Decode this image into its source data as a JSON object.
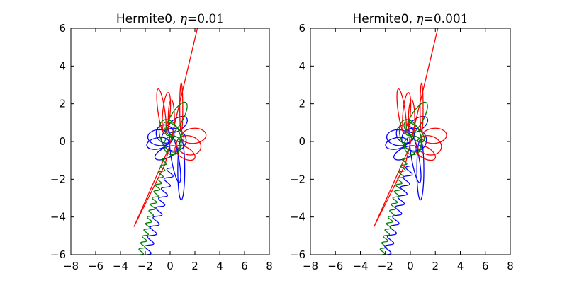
{
  "figure": {
    "background": "#ffffff"
  },
  "chart_data": [
    {
      "type": "line",
      "title": {
        "prefix": "Hermite0, ",
        "symbol": "η",
        "operator": "=",
        "value": "0.01"
      },
      "xlabel": "",
      "ylabel": "",
      "xlim": [
        -8,
        8
      ],
      "ylim": [
        -6,
        6
      ],
      "xticks": [
        -8,
        -6,
        -4,
        -2,
        0,
        2,
        4,
        6,
        8
      ],
      "yticks": [
        -6,
        -4,
        -2,
        0,
        2,
        4,
        6
      ],
      "xtick_labels": [
        "−8",
        "−6",
        "−4",
        "−2",
        "0",
        "2",
        "4",
        "6",
        "8"
      ],
      "ytick_labels": [
        "−6",
        "−4",
        "−2",
        "0",
        "2",
        "4",
        "6"
      ],
      "grid": false,
      "series": [
        {
          "color": "#0000ff",
          "escape": {
            "start": [
              0.1,
              -1.4
            ],
            "end": [
              -1.9,
              -6.0
            ],
            "wiggles": 9,
            "amp": 0.32
          },
          "loops": [
            {
              "cx": -0.8,
              "cy": 0.2,
              "rx": 1.0,
              "ry": 0.42,
              "rot": -5
            },
            {
              "cx": -1.0,
              "cy": -0.1,
              "rx": 0.9,
              "ry": 0.3,
              "rot": 12
            },
            {
              "cx": -0.3,
              "cy": -0.6,
              "rx": 1.0,
              "ry": 0.28,
              "rot": 25
            },
            {
              "cx": 0.4,
              "cy": -0.9,
              "rx": 0.3,
              "ry": 1.3,
              "rot": 10
            },
            {
              "cx": 0.9,
              "cy": -1.5,
              "rx": 0.28,
              "ry": 1.6,
              "rot": 0
            },
            {
              "cx": 0.6,
              "cy": 0.9,
              "rx": 0.9,
              "ry": 0.32,
              "rot": 35
            },
            {
              "cx": 0.3,
              "cy": 0.1,
              "rx": 1.0,
              "ry": 0.6,
              "rot": -20
            },
            {
              "cx": -0.4,
              "cy": 0.4,
              "rx": 0.7,
              "ry": 0.5,
              "rot": 40
            }
          ]
        },
        {
          "color": "#ff0000",
          "spike": [
            [
              0.0,
              -0.2
            ],
            [
              -2.9,
              -4.5
            ],
            [
              -0.4,
              -1.2
            ],
            [
              2.2,
              6.0
            ]
          ],
          "loops": [
            {
              "cx": -0.7,
              "cy": 1.6,
              "rx": 0.28,
              "ry": 1.2,
              "rot": 8
            },
            {
              "cx": -0.3,
              "cy": 1.5,
              "rx": 0.3,
              "ry": 1.1,
              "rot": -5
            },
            {
              "cx": 0.1,
              "cy": 1.2,
              "rx": 0.25,
              "ry": 1.0,
              "rot": 0
            },
            {
              "cx": 1.9,
              "cy": 0.3,
              "rx": 1.0,
              "ry": 0.4,
              "rot": 5
            },
            {
              "cx": 1.5,
              "cy": -0.2,
              "rx": 1.0,
              "ry": 0.5,
              "rot": -15
            },
            {
              "cx": 1.2,
              "cy": -0.6,
              "rx": 0.9,
              "ry": 0.3,
              "rot": -30
            },
            {
              "cx": 0.9,
              "cy": 1.8,
              "rx": 0.12,
              "ry": 1.3,
              "rot": 0
            }
          ]
        },
        {
          "color": "#008000",
          "escape": {
            "start": [
              -0.4,
              -0.9
            ],
            "end": [
              -2.4,
              -6.0
            ],
            "wiggles": 15,
            "amp": 0.22
          },
          "loops": [
            {
              "cx": 0.5,
              "cy": 1.2,
              "rx": 0.5,
              "ry": 1.0,
              "rot": -30
            },
            {
              "cx": 0.0,
              "cy": 0.3,
              "rx": 0.8,
              "ry": 0.9,
              "rot": 20
            },
            {
              "cx": 0.2,
              "cy": -0.2,
              "rx": 0.7,
              "ry": 0.5,
              "rot": -10
            },
            {
              "cx": 0.3,
              "cy": 0.5,
              "rx": 0.45,
              "ry": 0.7,
              "rot": 45
            }
          ]
        }
      ]
    },
    {
      "type": "line",
      "title": {
        "prefix": "Hermite0, ",
        "symbol": "η",
        "operator": "=",
        "value": "0.001"
      },
      "xlabel": "",
      "ylabel": "",
      "xlim": [
        -8,
        8
      ],
      "ylim": [
        -6,
        6
      ],
      "xticks": [
        -8,
        -6,
        -4,
        -2,
        0,
        2,
        4,
        6,
        8
      ],
      "yticks": [
        -6,
        -4,
        -2,
        0,
        2,
        4,
        6
      ],
      "xtick_labels": [
        "−8",
        "−6",
        "−4",
        "−2",
        "0",
        "2",
        "4",
        "6",
        "8"
      ],
      "ytick_labels": [
        "−6",
        "−4",
        "−2",
        "0",
        "2",
        "4",
        "6"
      ],
      "grid": false,
      "series": [
        {
          "color": "#0000ff",
          "escape": {
            "start": [
              0.0,
              -1.3
            ],
            "end": [
              -1.9,
              -6.0
            ],
            "wiggles": 9,
            "amp": 0.32
          },
          "loops": [
            {
              "cx": -0.9,
              "cy": 0.2,
              "rx": 1.0,
              "ry": 0.42,
              "rot": -5
            },
            {
              "cx": -1.1,
              "cy": -0.1,
              "rx": 0.9,
              "ry": 0.3,
              "rot": 12
            },
            {
              "cx": -0.4,
              "cy": -0.6,
              "rx": 1.0,
              "ry": 0.28,
              "rot": 25
            },
            {
              "cx": 0.4,
              "cy": -0.9,
              "rx": 0.3,
              "ry": 1.3,
              "rot": 10
            },
            {
              "cx": 0.8,
              "cy": -1.5,
              "rx": 0.28,
              "ry": 1.6,
              "rot": 0
            },
            {
              "cx": 0.6,
              "cy": 0.9,
              "rx": 0.9,
              "ry": 0.32,
              "rot": 35
            },
            {
              "cx": 0.3,
              "cy": 0.1,
              "rx": 1.0,
              "ry": 0.6,
              "rot": -20
            },
            {
              "cx": -0.4,
              "cy": 0.4,
              "rx": 0.7,
              "ry": 0.5,
              "rot": 40
            }
          ]
        },
        {
          "color": "#ff0000",
          "spike": [
            [
              0.0,
              -0.2
            ],
            [
              -2.9,
              -4.5
            ],
            [
              -0.4,
              -1.2
            ],
            [
              2.2,
              6.0
            ]
          ],
          "loops": [
            {
              "cx": -0.7,
              "cy": 1.6,
              "rx": 0.28,
              "ry": 1.2,
              "rot": 8
            },
            {
              "cx": -0.3,
              "cy": 1.5,
              "rx": 0.3,
              "ry": 1.1,
              "rot": -5
            },
            {
              "cx": 0.1,
              "cy": 1.2,
              "rx": 0.25,
              "ry": 1.0,
              "rot": 0
            },
            {
              "cx": 1.9,
              "cy": 0.3,
              "rx": 1.0,
              "ry": 0.4,
              "rot": 5
            },
            {
              "cx": 1.5,
              "cy": -0.2,
              "rx": 1.0,
              "ry": 0.5,
              "rot": -15
            },
            {
              "cx": 1.2,
              "cy": -0.6,
              "rx": 0.9,
              "ry": 0.3,
              "rot": -30
            },
            {
              "cx": 0.9,
              "cy": 1.8,
              "rx": 0.12,
              "ry": 1.3,
              "rot": 0
            }
          ]
        },
        {
          "color": "#008000",
          "escape": {
            "start": [
              -0.4,
              -0.9
            ],
            "end": [
              -2.3,
              -6.0
            ],
            "wiggles": 15,
            "amp": 0.22
          },
          "loops": [
            {
              "cx": 0.5,
              "cy": 1.2,
              "rx": 0.5,
              "ry": 1.0,
              "rot": -30
            },
            {
              "cx": 0.0,
              "cy": 0.3,
              "rx": 0.8,
              "ry": 0.9,
              "rot": 20
            },
            {
              "cx": 0.2,
              "cy": -0.2,
              "rx": 0.7,
              "ry": 0.5,
              "rot": -10
            },
            {
              "cx": 0.3,
              "cy": 0.5,
              "rx": 0.45,
              "ry": 0.7,
              "rot": 45
            }
          ]
        }
      ]
    }
  ]
}
